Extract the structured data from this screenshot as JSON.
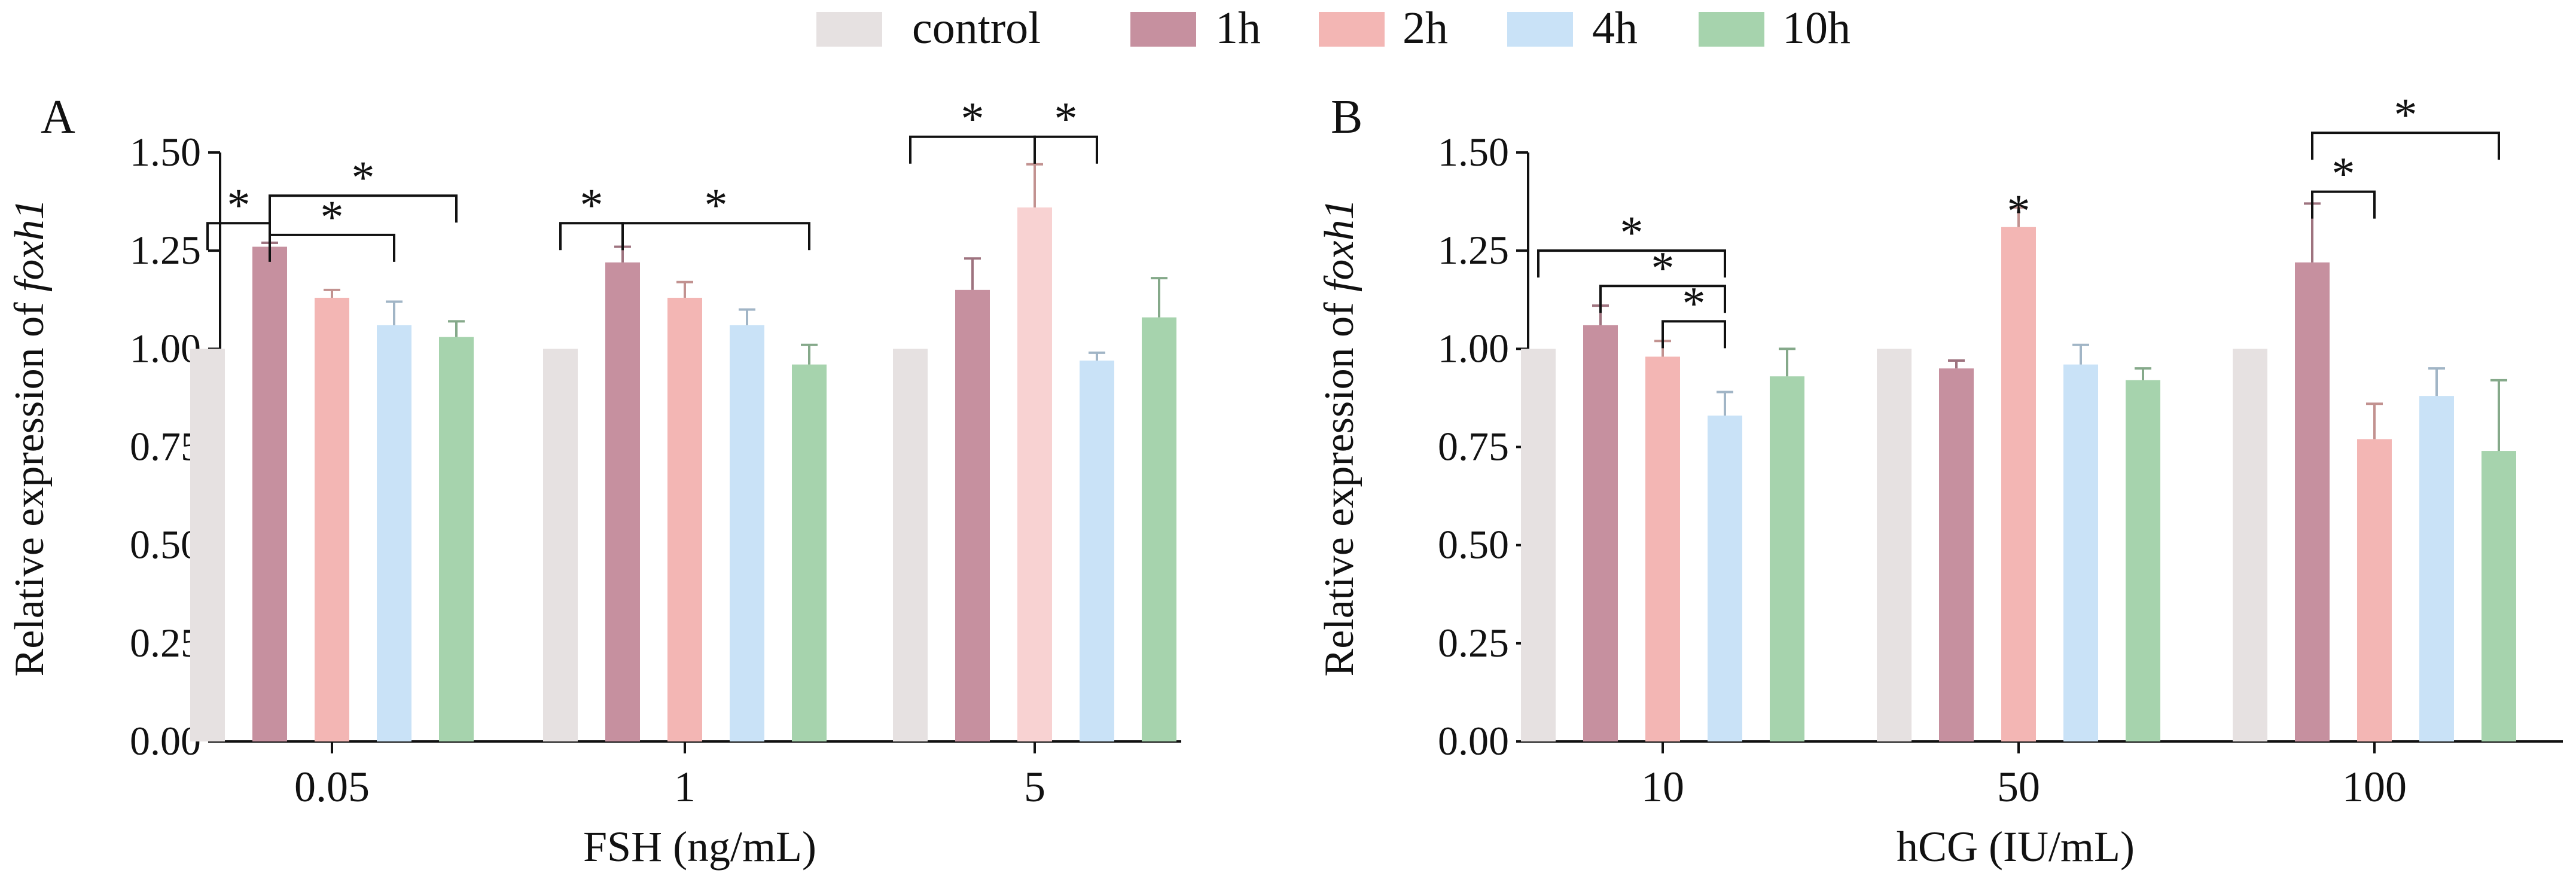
{
  "legend": [
    {
      "label": "control",
      "color": "#e6e1e1"
    },
    {
      "label": "1h",
      "color": "#c6909f"
    },
    {
      "label": "2h",
      "color": "#f3b6b4"
    },
    {
      "label": "4h",
      "color": "#c9e2f7"
    },
    {
      "label": "10h",
      "color": "#a6d3ad"
    }
  ],
  "chart_data": [
    {
      "type": "bar",
      "panel_label": "A",
      "xlabel": "FSH (ng/mL)",
      "ylabel_prefix": "Relative expression of ",
      "ylabel_gene": "foxh1",
      "ylim": [
        0,
        1.5
      ],
      "yticks": [
        "0.00",
        "0.25",
        "0.50",
        "0.75",
        "1.00",
        "1.25",
        "1.50"
      ],
      "categories": [
        "0.05",
        "1",
        "5"
      ],
      "series": [
        {
          "name": "control",
          "values": [
            1.0,
            1.0,
            1.0
          ],
          "errors": [
            0,
            0,
            0
          ]
        },
        {
          "name": "1h",
          "values": [
            1.26,
            1.22,
            1.15
          ],
          "errors": [
            0.01,
            0.04,
            0.08
          ]
        },
        {
          "name": "2h",
          "values": [
            1.13,
            1.13,
            1.36
          ],
          "errors": [
            0.02,
            0.04,
            0.11
          ]
        },
        {
          "name": "4h",
          "values": [
            1.06,
            1.06,
            0.97
          ],
          "errors": [
            0.06,
            0.04,
            0.02
          ]
        },
        {
          "name": "10h",
          "values": [
            1.03,
            0.96,
            1.08
          ],
          "errors": [
            0.04,
            0.05,
            0.1
          ]
        }
      ],
      "highlighted": [
        {
          "category": 2,
          "series": 2,
          "color": "#f8d2d2"
        }
      ],
      "annotations": [
        {
          "category": 0,
          "from": 0,
          "to": 1,
          "level": 1.32,
          "label": "*"
        },
        {
          "category": 0,
          "from": 1,
          "to": 3,
          "level": 1.29,
          "label": "*"
        },
        {
          "category": 0,
          "from": 1,
          "to": 4,
          "level": 1.39,
          "label": "*"
        },
        {
          "category": 1,
          "from": 0,
          "to": 1,
          "level": 1.32,
          "label": "*"
        },
        {
          "category": 1,
          "from": 1,
          "to": 4,
          "level": 1.32,
          "label": "*"
        },
        {
          "category": 2,
          "from": 0,
          "to": 2,
          "level": 1.54,
          "label": "*"
        },
        {
          "category": 2,
          "from": 2,
          "to": 3,
          "level": 1.54,
          "label": "*"
        }
      ]
    },
    {
      "type": "bar",
      "panel_label": "B",
      "xlabel": "hCG (IU/mL)",
      "ylabel_prefix": "Relative expression of ",
      "ylabel_gene": "foxh1",
      "ylim": [
        0,
        1.5
      ],
      "yticks": [
        "0.00",
        "0.25",
        "0.50",
        "0.75",
        "1.00",
        "1.25",
        "1.50"
      ],
      "categories": [
        "10",
        "50",
        "100"
      ],
      "series": [
        {
          "name": "control",
          "values": [
            1.0,
            1.0,
            1.0
          ],
          "errors": [
            0,
            0,
            0
          ]
        },
        {
          "name": "1h",
          "values": [
            1.06,
            0.95,
            1.22
          ],
          "errors": [
            0.05,
            0.02,
            0.15
          ]
        },
        {
          "name": "2h",
          "values": [
            0.98,
            1.31,
            0.77
          ],
          "errors": [
            0.04,
            0.05,
            0.09
          ]
        },
        {
          "name": "4h",
          "values": [
            0.83,
            0.96,
            0.88
          ],
          "errors": [
            0.06,
            0.05,
            0.07
          ]
        },
        {
          "name": "10h",
          "values": [
            0.93,
            0.92,
            0.74
          ],
          "errors": [
            0.07,
            0.03,
            0.18
          ]
        }
      ],
      "highlighted": [],
      "annotations": [
        {
          "category": 0,
          "from": 0,
          "to": 3,
          "level": 1.25,
          "label": "*"
        },
        {
          "category": 0,
          "from": 1,
          "to": 3,
          "level": 1.16,
          "label": "*"
        },
        {
          "category": 0,
          "from": 2,
          "to": 3,
          "level": 1.07,
          "label": "*"
        },
        {
          "category": 1,
          "type": "point",
          "series": 2,
          "level": 1.38,
          "label": "*"
        },
        {
          "category": 2,
          "from": 1,
          "to": 2,
          "level": 1.4,
          "label": "*"
        },
        {
          "category": 2,
          "from": 1,
          "to": 4,
          "level": 1.55,
          "label": "*"
        }
      ]
    }
  ]
}
